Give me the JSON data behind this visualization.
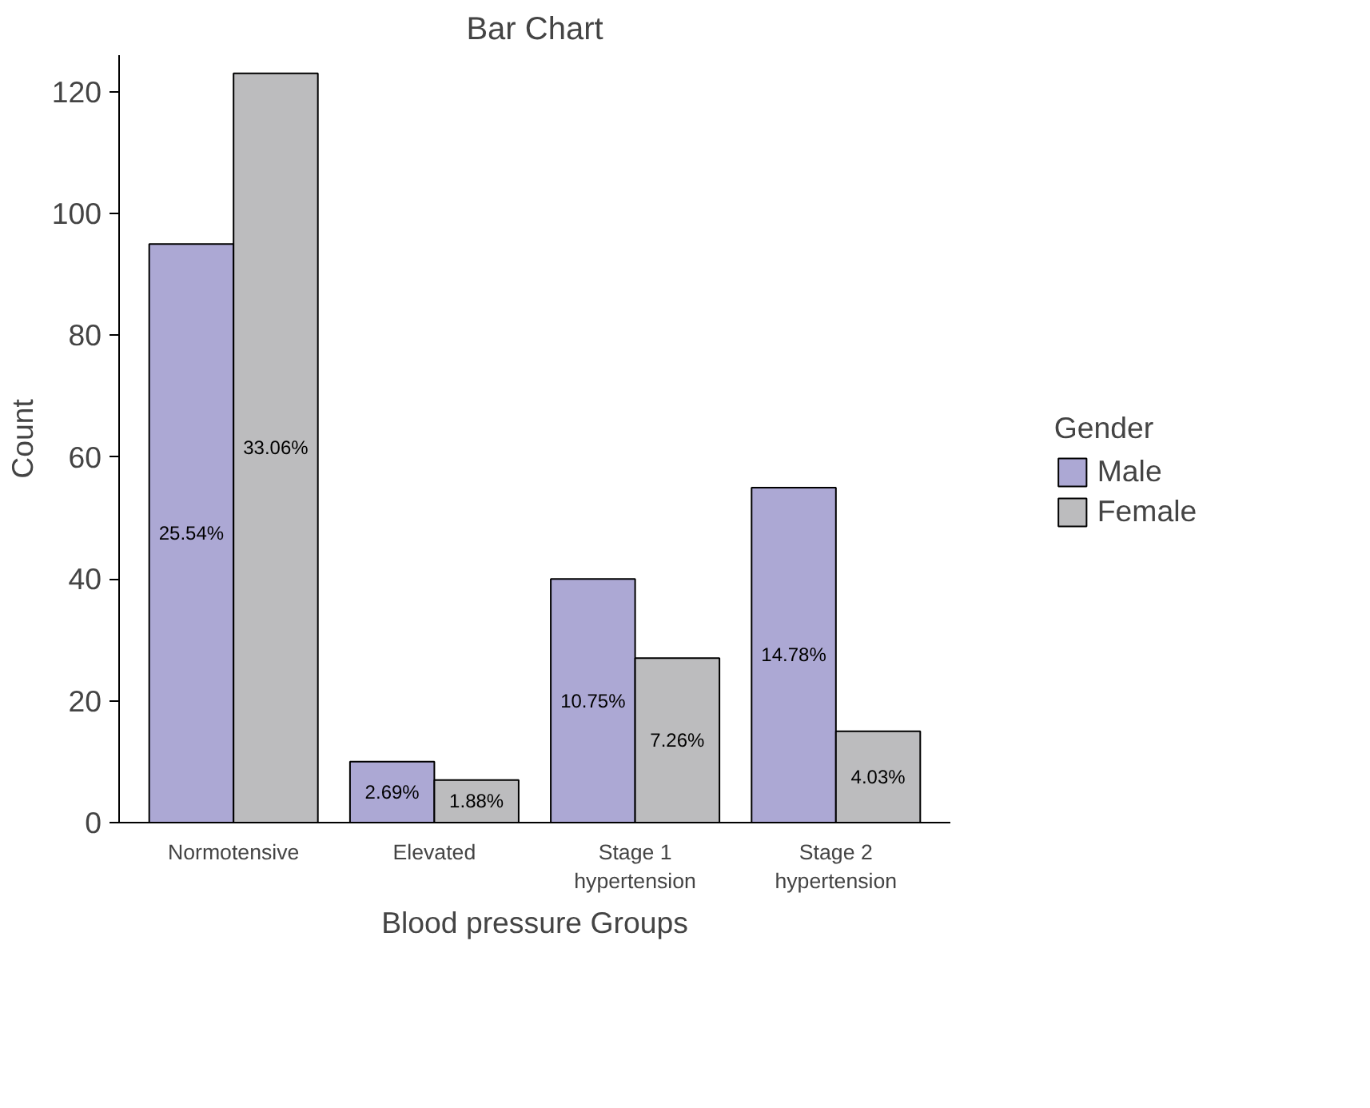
{
  "chart_data": {
    "type": "bar",
    "title": "Bar Chart",
    "xlabel": "Blood pressure Groups",
    "ylabel": "Count",
    "legend_title": "Gender",
    "categories": [
      "Normotensive",
      "Elevated",
      "Stage 1\nhypertension",
      "Stage 2\nhypertension"
    ],
    "series": [
      {
        "name": "Male",
        "color": "#aca8d4",
        "values": [
          95,
          10,
          40,
          55
        ]
      },
      {
        "name": "Female",
        "color": "#bcbcbe",
        "values": [
          123,
          7,
          27,
          15
        ]
      }
    ],
    "annotations": [
      {
        "text": "25.54%",
        "x": "Normotensive",
        "y": 47.5
      },
      {
        "text": "33.06%",
        "x": "Normotensive",
        "y": 61.5
      },
      {
        "text": "2.69%",
        "x": "Elevated",
        "y": 5
      },
      {
        "text": "1.88%",
        "x": "Elevated",
        "y": 3.5
      },
      {
        "text": "10.75%",
        "x": "Stage 1\nhypertension",
        "y": 20
      },
      {
        "text": "7.26%",
        "x": "Stage 1\nhypertension",
        "y": 13.5
      },
      {
        "text": "14.78%",
        "x": "Stage 2\nhypertension",
        "y": 27.5
      },
      {
        "text": "4.03%",
        "x": "Stage 2\nhypertension",
        "y": 7.5
      }
    ],
    "ylim": [
      0,
      126
    ],
    "yticks": [
      0,
      20,
      40,
      60,
      80,
      100,
      120
    ],
    "grid": false,
    "legend": "right"
  }
}
